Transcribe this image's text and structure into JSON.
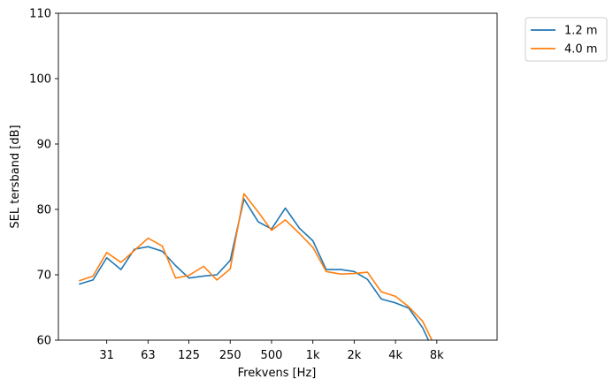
{
  "chart_data": {
    "type": "line",
    "xlabel": "Frekvens [Hz]",
    "ylabel": "SEL tersband [dB]",
    "x_scale": "log",
    "xlim": [
      14,
      22000
    ],
    "ylim": [
      60,
      110
    ],
    "grid": false,
    "legend_position": "outside top-right",
    "x_ticks": [
      {
        "value": 31.5,
        "label": "31"
      },
      {
        "value": 63,
        "label": "63"
      },
      {
        "value": 125,
        "label": "125"
      },
      {
        "value": 250,
        "label": "250"
      },
      {
        "value": 500,
        "label": "500"
      },
      {
        "value": 1000,
        "label": "1k"
      },
      {
        "value": 2000,
        "label": "2k"
      },
      {
        "value": 4000,
        "label": "4k"
      },
      {
        "value": 8000,
        "label": "8k"
      }
    ],
    "y_ticks": [
      60,
      70,
      80,
      90,
      100,
      110
    ],
    "x": [
      20,
      25,
      31.5,
      40,
      50,
      63,
      80,
      100,
      125,
      160,
      200,
      250,
      315,
      400,
      500,
      630,
      800,
      1000,
      1250,
      1600,
      2000,
      2500,
      3150,
      4000,
      5000,
      6300,
      8000
    ],
    "series": [
      {
        "name": "1.2 m",
        "color": "#1f77b4",
        "values": [
          68.6,
          69.2,
          72.6,
          70.8,
          73.9,
          74.3,
          73.6,
          71.4,
          69.5,
          69.8,
          70.0,
          72.2,
          81.6,
          78.1,
          77.0,
          80.2,
          77.1,
          75.2,
          70.8,
          70.8,
          70.5,
          69.3,
          66.3,
          65.7,
          64.9,
          61.9,
          57.3
        ]
      },
      {
        "name": "4.0 m",
        "color": "#ff7f0e",
        "values": [
          69.1,
          69.8,
          73.4,
          71.9,
          73.7,
          75.6,
          74.4,
          69.5,
          69.9,
          71.3,
          69.2,
          70.9,
          82.4,
          79.6,
          76.8,
          78.4,
          76.3,
          74.2,
          70.5,
          70.1,
          70.2,
          70.4,
          67.4,
          66.7,
          65.1,
          62.9,
          58.5
        ]
      }
    ]
  }
}
